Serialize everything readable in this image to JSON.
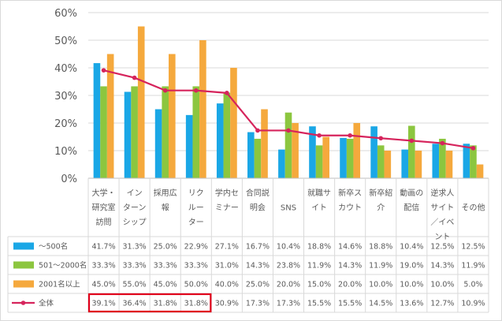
{
  "chart_data": {
    "type": "bar",
    "categories": [
      [
        "大学・",
        "研究室",
        "訪問"
      ],
      [
        "イン",
        "ターン",
        "シップ"
      ],
      [
        "採用広",
        "報"
      ],
      [
        "リク",
        "ルー",
        "ター"
      ],
      [
        "学内セ",
        "ミナー"
      ],
      [
        "合同説",
        "明会"
      ],
      [
        "SNS"
      ],
      [
        "就職サ",
        "イト"
      ],
      [
        "新卒ス",
        "カウト"
      ],
      [
        "新卒紹",
        "介"
      ],
      [
        "動画の",
        "配信"
      ],
      [
        "逆求人",
        "サイト",
        "／イベ",
        "ント"
      ],
      [
        "その他"
      ]
    ],
    "yticks": [
      "0%",
      "10%",
      "20%",
      "30%",
      "40%",
      "50%",
      "60%"
    ],
    "ylim": [
      0,
      60
    ],
    "series": [
      {
        "name": "～500名",
        "color": "#1aa7e6",
        "values": [
          41.7,
          31.3,
          25.0,
          22.9,
          27.1,
          16.7,
          10.4,
          18.8,
          14.6,
          18.8,
          10.4,
          12.5,
          12.5
        ],
        "labels": [
          "41.7%",
          "31.3%",
          "25.0%",
          "22.9%",
          "27.1%",
          "16.7%",
          "10.4%",
          "18.8%",
          "14.6%",
          "18.8%",
          "10.4%",
          "12.5%",
          "12.5%"
        ]
      },
      {
        "name": "501～2000名",
        "color": "#8cc63f",
        "values": [
          33.3,
          33.3,
          33.3,
          33.3,
          31.0,
          14.3,
          23.8,
          11.9,
          14.3,
          11.9,
          19.0,
          14.3,
          11.9
        ],
        "labels": [
          "33.3%",
          "33.3%",
          "33.3%",
          "33.3%",
          "31.0%",
          "14.3%",
          "23.8%",
          "11.9%",
          "14.3%",
          "11.9%",
          "19.0%",
          "14.3%",
          "11.9%"
        ]
      },
      {
        "name": "2001名以上",
        "color": "#f5a93d",
        "values": [
          45.0,
          55.0,
          45.0,
          50.0,
          40.0,
          25.0,
          20.0,
          15.0,
          20.0,
          10.0,
          10.0,
          10.0,
          5.0
        ],
        "labels": [
          "45.0%",
          "55.0%",
          "45.0%",
          "50.0%",
          "40.0%",
          "25.0%",
          "20.0%",
          "15.0%",
          "20.0%",
          "10.0%",
          "10.0%",
          "10.0%",
          "5.0%"
        ]
      },
      {
        "name": "全体",
        "color": "#d6245c",
        "kind": "line",
        "values": [
          39.1,
          36.4,
          31.8,
          31.8,
          30.9,
          17.3,
          17.3,
          15.5,
          15.5,
          14.5,
          13.6,
          12.7,
          10.9
        ],
        "labels": [
          "39.1%",
          "36.4%",
          "31.8%",
          "31.8%",
          "30.9%",
          "17.3%",
          "17.3%",
          "15.5%",
          "15.5%",
          "14.5%",
          "13.6%",
          "12.7%",
          "10.9%"
        ]
      }
    ],
    "grid": true,
    "highlight": {
      "series": "全体",
      "from": 0,
      "to": 3,
      "color": "#e0001b"
    }
  }
}
